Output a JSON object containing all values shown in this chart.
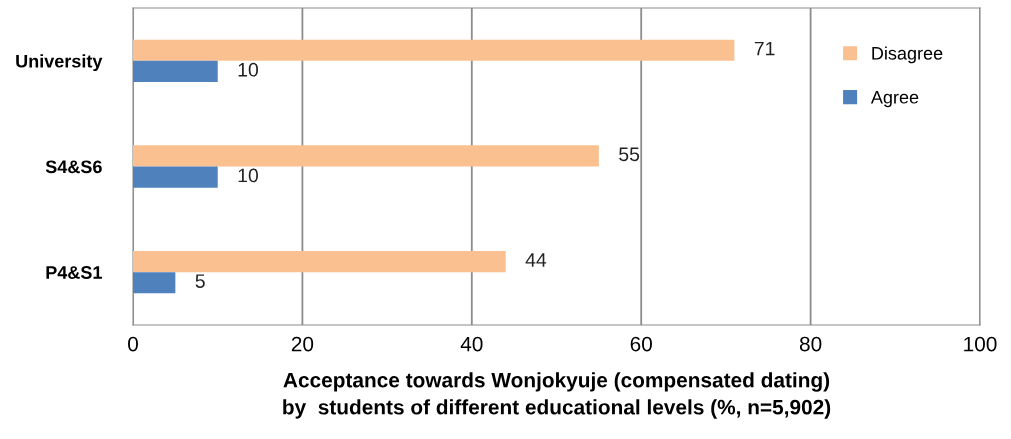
{
  "chart_data": {
    "type": "bar",
    "orientation": "horizontal",
    "xlabel": "Acceptance towards Wonjokyuje (compensated dating)\nby  students of different educational levels (%, n=5,902)",
    "categories": [
      "University",
      "S4&S6",
      "P4&S1"
    ],
    "series": [
      {
        "name": "Disagree",
        "color": "#fac090",
        "values": [
          71,
          55,
          44
        ]
      },
      {
        "name": "Agree",
        "color": "#4f81bd",
        "values": [
          10,
          10,
          5
        ]
      }
    ],
    "xlim": [
      0,
      100
    ],
    "xticks": [
      0,
      20,
      40,
      60,
      80,
      100
    ],
    "grid": "x",
    "legend": "right",
    "data_labels": true
  }
}
